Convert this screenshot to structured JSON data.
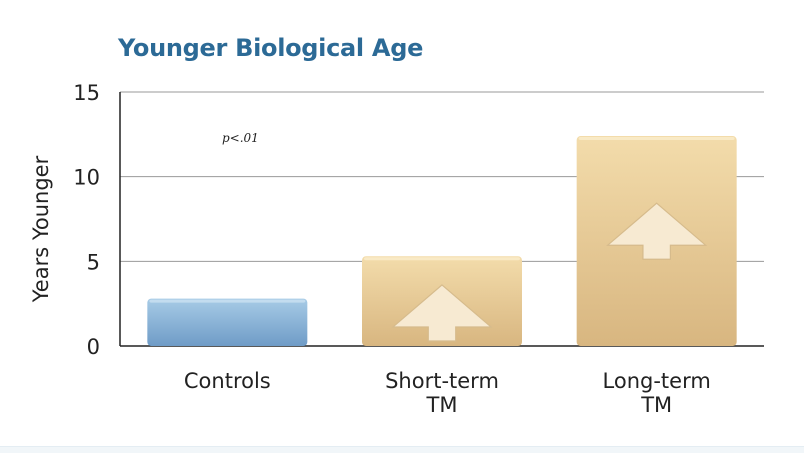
{
  "chart_data": {
    "type": "bar",
    "title": "Younger Biological Age",
    "ylabel": "Years Younger",
    "xlabel": "",
    "ylim": [
      0,
      15
    ],
    "yticks": [
      0,
      5,
      10,
      15
    ],
    "grid": true,
    "annotation": "p<.01",
    "categories": [
      [
        "Controls"
      ],
      [
        "Short-term",
        "TM"
      ],
      [
        "Long-term",
        "TM"
      ]
    ],
    "values": [
      2.8,
      5.3,
      12.4
    ],
    "bar_colors": [
      "#8fb6d8",
      "#e8cc98",
      "#e8cc98"
    ],
    "arrows": [
      false,
      true,
      true
    ]
  }
}
